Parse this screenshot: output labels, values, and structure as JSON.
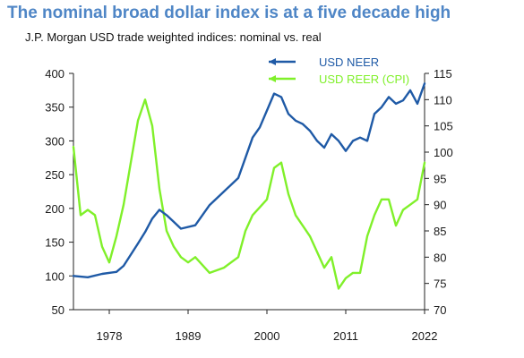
{
  "title": "The nominal broad dollar index is at a five decade high",
  "subtitle": "J.P. Morgan USD trade weighted indices: nominal  vs. real",
  "colors": {
    "neer": "#1f5aa6",
    "reer": "#80f02a",
    "title": "#4f86c6"
  },
  "chart_data": {
    "type": "line",
    "title": "The nominal broad dollar index is at a five decade high",
    "x_ticks": [
      "1978",
      "1989",
      "2000",
      "2011",
      "2022"
    ],
    "xlim": [
      1973,
      2022
    ],
    "y_left": {
      "ticks": [
        "50",
        "100",
        "150",
        "200",
        "250",
        "300",
        "350",
        "400"
      ],
      "lim": [
        50,
        400
      ]
    },
    "y_right": {
      "ticks": [
        "70",
        "75",
        "80",
        "85",
        "90",
        "95",
        "100",
        "105",
        "110",
        "115"
      ],
      "lim": [
        70,
        115
      ]
    },
    "grid": false,
    "legend_position": "top-right",
    "series": [
      {
        "name": "USD NEER",
        "axis": "left",
        "x": [
          1973,
          1975,
          1977,
          1979,
          1980,
          1982,
          1983,
          1984,
          1985,
          1986,
          1987,
          1988,
          1990,
          1992,
          1994,
          1996,
          1997,
          1998,
          1999,
          2000,
          2001,
          2002,
          2003,
          2004,
          2005,
          2006,
          2007,
          2008,
          2009,
          2010,
          2011,
          2012,
          2013,
          2014,
          2015,
          2016,
          2017,
          2018,
          2019,
          2020,
          2021,
          2022
        ],
        "y": [
          100,
          98,
          103,
          106,
          115,
          148,
          165,
          185,
          198,
          190,
          180,
          170,
          175,
          205,
          225,
          245,
          275,
          305,
          320,
          345,
          370,
          365,
          340,
          330,
          325,
          315,
          300,
          290,
          310,
          300,
          285,
          300,
          305,
          300,
          340,
          350,
          365,
          355,
          360,
          375,
          355,
          385
        ]
      },
      {
        "name": "USD REER (CPI)",
        "axis": "right",
        "x": [
          1973,
          1974,
          1975,
          1976,
          1977,
          1978,
          1979,
          1980,
          1981,
          1982,
          1983,
          1984,
          1985,
          1986,
          1987,
          1988,
          1989,
          1990,
          1992,
          1994,
          1996,
          1997,
          1998,
          2000,
          2001,
          2002,
          2003,
          2004,
          2006,
          2008,
          2009,
          2010,
          2011,
          2012,
          2013,
          2014,
          2015,
          2016,
          2017,
          2018,
          2019,
          2020,
          2021,
          2022
        ],
        "y": [
          101,
          88,
          89,
          88,
          82,
          79,
          84,
          90,
          98,
          106,
          110,
          105,
          93,
          85,
          82,
          80,
          79,
          80,
          77,
          78,
          80,
          85,
          88,
          91,
          97,
          98,
          92,
          88,
          84,
          78,
          80,
          74,
          76,
          77,
          77,
          84,
          88,
          91,
          91,
          86,
          89,
          90,
          91,
          98
        ]
      }
    ]
  }
}
